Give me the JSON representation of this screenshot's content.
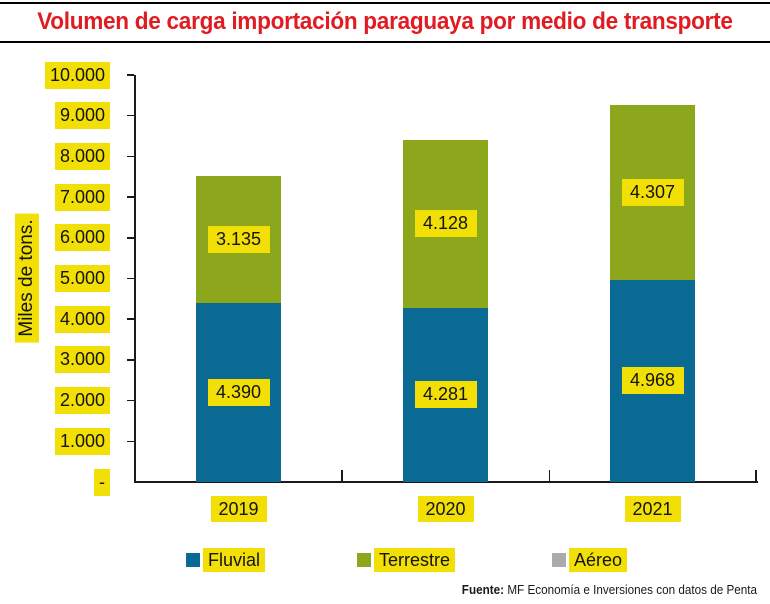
{
  "title": "Volumen de carga importación paraguaya por medio de transporte",
  "chart_data": {
    "type": "bar",
    "stacked": true,
    "title": "Volumen de carga importación paraguaya por medio de transporte",
    "ylabel": "Miles de tons.",
    "xlabel": "",
    "ylim": [
      0,
      10000
    ],
    "grid": false,
    "legend_position": "bottom",
    "categories": [
      "2019",
      "2020",
      "2021"
    ],
    "y_tick_labels": [
      "10.000",
      "9.000",
      "8.000",
      "7.000",
      "6.000",
      "5.000",
      "4.000",
      "3.000",
      "2.000",
      "1.000",
      "-"
    ],
    "series": [
      {
        "name": "Fluvial",
        "color": "#0B6A93",
        "values": [
          4390,
          4281,
          4968
        ],
        "data_labels": [
          "4.390",
          "4.281",
          "4.968"
        ]
      },
      {
        "name": "Terrestre",
        "color": "#8CA71B",
        "values": [
          3135,
          4128,
          4307
        ],
        "data_labels": [
          "3.135",
          "4.128",
          "4.307"
        ]
      },
      {
        "name": "Aéreo",
        "color": "#ABABAB",
        "values": [
          0,
          0,
          0
        ],
        "data_labels": [
          "",
          "",
          ""
        ]
      }
    ]
  },
  "source": {
    "prefix": "Fuente:",
    "text": " MF Economía e Inversiones con datos de Penta"
  },
  "colors": {
    "highlight": "#F2DF05",
    "title_red": "#E01B22",
    "fluvial": "#0B6A93",
    "terrestre": "#8CA71B",
    "aereo": "#ABABAB"
  }
}
